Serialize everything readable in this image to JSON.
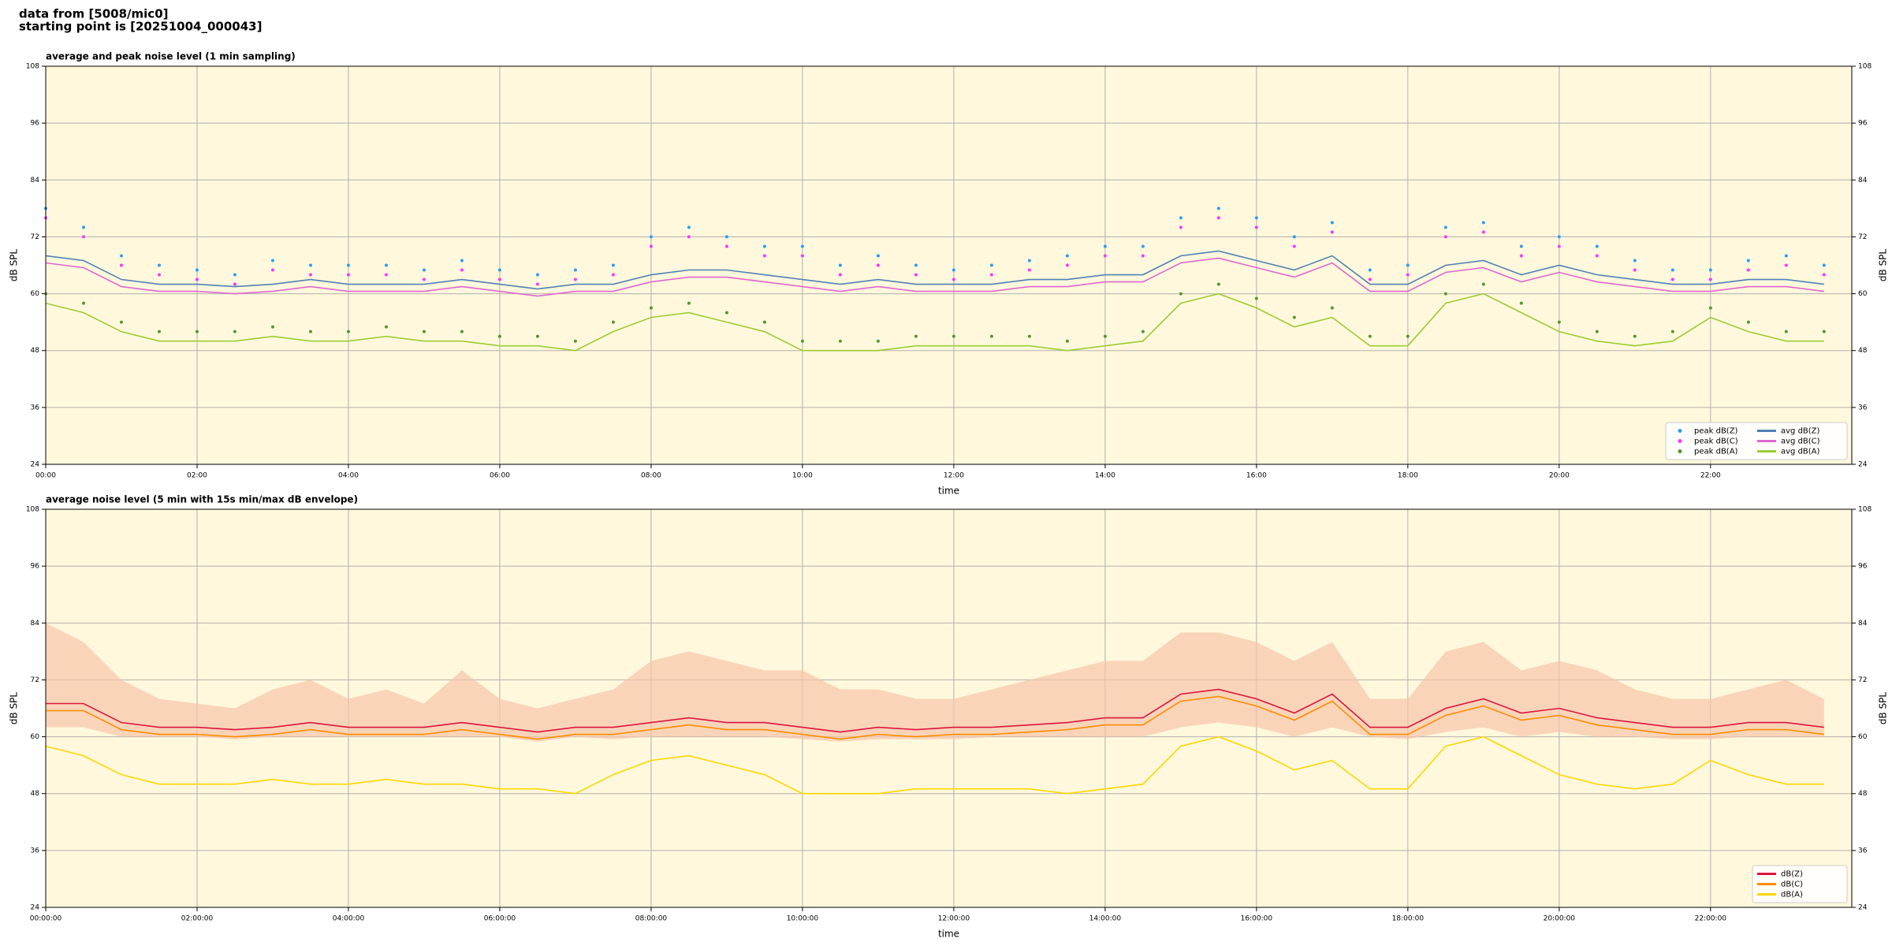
{
  "header": {
    "lines": [
      "data from [5008/mic0]",
      "starting point is [20251004_000043]"
    ]
  },
  "chart_data": [
    {
      "type": "line",
      "title": "average and peak noise level (1 min sampling)",
      "xlabel": "time",
      "ylabel": "dB SPL",
      "x": [
        "00:00",
        "00:30",
        "01:00",
        "01:30",
        "02:00",
        "02:30",
        "03:00",
        "03:30",
        "04:00",
        "04:30",
        "05:00",
        "05:30",
        "06:00",
        "06:30",
        "07:00",
        "07:30",
        "08:00",
        "08:30",
        "09:00",
        "09:30",
        "10:00",
        "10:30",
        "11:00",
        "11:30",
        "12:00",
        "12:30",
        "13:00",
        "13:30",
        "14:00",
        "14:30",
        "15:00",
        "15:30",
        "16:00",
        "16:30",
        "17:00",
        "17:30",
        "18:00",
        "18:30",
        "19:00",
        "19:30",
        "20:00",
        "20:30",
        "21:00",
        "21:30",
        "22:00",
        "22:30",
        "23:00",
        "23:30"
      ],
      "xlim": [
        "00:00",
        "23:52"
      ],
      "xticks": [
        "00:00",
        "02:00",
        "04:00",
        "06:00",
        "08:00",
        "10:00",
        "12:00",
        "14:00",
        "16:00",
        "18:00",
        "20:00",
        "22:00"
      ],
      "ylim": [
        24,
        108
      ],
      "yticks": [
        24,
        36,
        48,
        60,
        72,
        84,
        96,
        108
      ],
      "grid": true,
      "legend": "lower right",
      "legend_columns": 2,
      "series": [
        {
          "name": "peak dB(Z)",
          "color": "#2a9df4",
          "marker": "dot",
          "values": [
            78,
            74,
            68,
            66,
            65,
            64,
            67,
            66,
            66,
            66,
            65,
            67,
            65,
            64,
            65,
            66,
            72,
            74,
            72,
            70,
            70,
            66,
            68,
            66,
            65,
            66,
            67,
            68,
            70,
            70,
            76,
            78,
            76,
            72,
            75,
            65,
            66,
            74,
            75,
            70,
            72,
            70,
            67,
            65,
            65,
            67,
            68,
            66
          ]
        },
        {
          "name": "peak dB(C)",
          "color": "#ff33ff",
          "marker": "dot",
          "values": [
            76,
            72,
            66,
            64,
            63,
            62,
            65,
            64,
            64,
            64,
            63,
            65,
            63,
            62,
            63,
            64,
            70,
            72,
            70,
            68,
            68,
            64,
            66,
            64,
            63,
            64,
            65,
            66,
            68,
            68,
            74,
            76,
            74,
            70,
            73,
            63,
            64,
            72,
            73,
            68,
            70,
            68,
            65,
            63,
            63,
            65,
            66,
            64
          ]
        },
        {
          "name": "peak dB(A)",
          "color": "#4f9a2f",
          "marker": "dot",
          "values": [
            60,
            58,
            54,
            52,
            52,
            52,
            53,
            52,
            52,
            53,
            52,
            52,
            51,
            51,
            50,
            54,
            57,
            58,
            56,
            54,
            50,
            50,
            50,
            51,
            51,
            51,
            51,
            50,
            51,
            52,
            60,
            62,
            59,
            55,
            57,
            51,
            51,
            60,
            62,
            58,
            54,
            52,
            51,
            52,
            57,
            54,
            52,
            52
          ]
        },
        {
          "name": "avg dB(Z)",
          "color": "#4f81b5",
          "marker": "line",
          "values": [
            68,
            67,
            63,
            62,
            62,
            61.5,
            62,
            63,
            62,
            62,
            62,
            63,
            62,
            61,
            62,
            62,
            64,
            65,
            65,
            64,
            63,
            62,
            63,
            62,
            62,
            62,
            63,
            63,
            64,
            64,
            68,
            69,
            67,
            65,
            68,
            62,
            62,
            66,
            67,
            64,
            66,
            64,
            63,
            62,
            62,
            63,
            63,
            62
          ]
        },
        {
          "name": "avg dB(C)",
          "color": "#e066d0",
          "marker": "line",
          "values": [
            66.5,
            65.5,
            61.5,
            60.5,
            60.5,
            60,
            60.5,
            61.5,
            60.5,
            60.5,
            60.5,
            61.5,
            60.5,
            59.5,
            60.5,
            60.5,
            62.5,
            63.5,
            63.5,
            62.5,
            61.5,
            60.5,
            61.5,
            60.5,
            60.5,
            60.5,
            61.5,
            61.5,
            62.5,
            62.5,
            66.5,
            67.5,
            65.5,
            63.5,
            66.5,
            60.5,
            60.5,
            64.5,
            65.5,
            62.5,
            64.5,
            62.5,
            61.5,
            60.5,
            60.5,
            61.5,
            61.5,
            60.5
          ]
        },
        {
          "name": "avg dB(A)",
          "color": "#9acd32",
          "marker": "line",
          "values": [
            58,
            56,
            52,
            50,
            50,
            50,
            51,
            50,
            50,
            51,
            50,
            50,
            49,
            49,
            48,
            52,
            55,
            56,
            54,
            52,
            48,
            48,
            48,
            49,
            49,
            49,
            49,
            48,
            49,
            50,
            58,
            60,
            57,
            53,
            55,
            49,
            49,
            58,
            60,
            56,
            52,
            50,
            49,
            50,
            55,
            52,
            50,
            50
          ]
        }
      ]
    },
    {
      "type": "line",
      "title": "average noise level (5 min with 15s min/max dB envelope)",
      "xlabel": "time",
      "ylabel": "dB SPL",
      "x": [
        "00:00:00",
        "00:30:00",
        "01:00:00",
        "01:30:00",
        "02:00:00",
        "02:30:00",
        "03:00:00",
        "03:30:00",
        "04:00:00",
        "04:30:00",
        "05:00:00",
        "05:30:00",
        "06:00:00",
        "06:30:00",
        "07:00:00",
        "07:30:00",
        "08:00:00",
        "08:30:00",
        "09:00:00",
        "09:30:00",
        "10:00:00",
        "10:30:00",
        "11:00:00",
        "11:30:00",
        "12:00:00",
        "12:30:00",
        "13:00:00",
        "13:30:00",
        "14:00:00",
        "14:30:00",
        "15:00:00",
        "15:30:00",
        "16:00:00",
        "16:30:00",
        "17:00:00",
        "17:30:00",
        "18:00:00",
        "18:30:00",
        "19:00:00",
        "19:30:00",
        "20:00:00",
        "20:30:00",
        "21:00:00",
        "21:30:00",
        "22:00:00",
        "22:30:00",
        "23:00:00",
        "23:30:00"
      ],
      "xlim": [
        "00:00:00",
        "23:52:00"
      ],
      "xticks": [
        "00:00:00",
        "02:00:00",
        "04:00:00",
        "06:00:00",
        "08:00:00",
        "10:00:00",
        "12:00:00",
        "14:00:00",
        "16:00:00",
        "18:00:00",
        "20:00:00",
        "22:00:00"
      ],
      "ylim": [
        24,
        108
      ],
      "yticks": [
        24,
        36,
        48,
        60,
        72,
        84,
        96,
        108
      ],
      "grid": true,
      "legend": "lower right",
      "legend_columns": 1,
      "envelope": {
        "color": "#f8c4aa",
        "min": [
          62,
          62,
          60,
          60,
          60,
          59.5,
          60,
          60,
          60,
          60,
          60,
          60,
          60,
          59,
          60,
          59.5,
          60,
          60,
          60,
          60,
          59.5,
          59,
          59.5,
          59.5,
          59.5,
          60,
          60,
          60,
          60,
          60,
          62,
          63,
          62,
          60,
          62,
          60,
          59.5,
          61,
          62,
          60,
          61,
          60,
          60,
          59.5,
          59.5,
          60,
          60,
          60
        ],
        "max": [
          84,
          80,
          72,
          68,
          67,
          66,
          70,
          72,
          68,
          70,
          67,
          74,
          68,
          66,
          68,
          70,
          76,
          78,
          76,
          74,
          74,
          70,
          70,
          68,
          68,
          70,
          72,
          74,
          76,
          76,
          82,
          82,
          80,
          76,
          80,
          68,
          68,
          78,
          80,
          74,
          76,
          74,
          70,
          68,
          68,
          70,
          72,
          68
        ]
      },
      "series": [
        {
          "name": "dB(Z)",
          "color": "#dc143c",
          "marker": "line",
          "values": [
            67,
            67,
            63,
            62,
            62,
            61.5,
            62,
            63,
            62,
            62,
            62,
            63,
            62,
            61,
            62,
            62,
            63,
            64,
            63,
            63,
            62,
            61,
            62,
            61.5,
            62,
            62,
            62.5,
            63,
            64,
            64,
            69,
            70,
            68,
            65,
            69,
            62,
            62,
            66,
            68,
            65,
            66,
            64,
            63,
            62,
            62,
            63,
            63,
            62
          ]
        },
        {
          "name": "dB(C)",
          "color": "#ff8c00",
          "marker": "line",
          "values": [
            65.5,
            65.5,
            61.5,
            60.5,
            60.5,
            60,
            60.5,
            61.5,
            60.5,
            60.5,
            60.5,
            61.5,
            60.5,
            59.5,
            60.5,
            60.5,
            61.5,
            62.5,
            61.5,
            61.5,
            60.5,
            59.5,
            60.5,
            60,
            60.5,
            60.5,
            61,
            61.5,
            62.5,
            62.5,
            67.5,
            68.5,
            66.5,
            63.5,
            67.5,
            60.5,
            60.5,
            64.5,
            66.5,
            63.5,
            64.5,
            62.5,
            61.5,
            60.5,
            60.5,
            61.5,
            61.5,
            60.5
          ]
        },
        {
          "name": "dB(A)",
          "color": "#ffd700",
          "marker": "line",
          "values": [
            58,
            56,
            52,
            50,
            50,
            50,
            51,
            50,
            50,
            51,
            50,
            50,
            49,
            49,
            48,
            52,
            55,
            56,
            54,
            52,
            48,
            48,
            48,
            49,
            49,
            49,
            49,
            48,
            49,
            50,
            58,
            60,
            57,
            53,
            55,
            49,
            49,
            58,
            60,
            56,
            52,
            50,
            49,
            50,
            55,
            52,
            50,
            50
          ]
        }
      ]
    }
  ]
}
